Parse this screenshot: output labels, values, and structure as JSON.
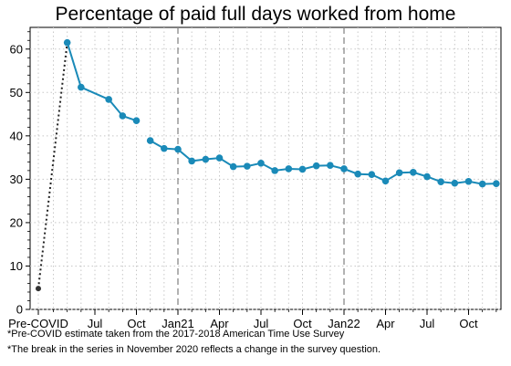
{
  "chart_data": {
    "type": "line",
    "title": "Percentage of paid full days worked from home",
    "xlabel": "",
    "ylabel": "",
    "ylim": [
      0,
      65
    ],
    "grid": true,
    "y_ticks": [
      0,
      10,
      20,
      30,
      40,
      50,
      60
    ],
    "x_tick_labels": [
      "Pre-COVID",
      "Jul",
      "Oct",
      "Jan21",
      "Apr",
      "Jul",
      "Oct",
      "Jan22",
      "Apr",
      "Jul",
      "Oct"
    ],
    "breaks": [
      "Jan21",
      "Jan22"
    ],
    "precovid": {
      "label": "Pre-COVID",
      "value": 4.8
    },
    "series": [
      {
        "color": "#1a8ab8",
        "segments": [
          {
            "x": [
              "2020-05",
              "2020-06",
              "2020-08",
              "2020-09",
              "2020-10"
            ],
            "y": [
              61.5,
              51.2,
              48.4,
              44.6,
              43.5
            ]
          },
          {
            "x": [
              "2020-11",
              "2020-12",
              "2021-01",
              "2021-02",
              "2021-03",
              "2021-04",
              "2021-05",
              "2021-06",
              "2021-07",
              "2021-08",
              "2021-09",
              "2021-10",
              "2021-11",
              "2021-12",
              "2022-01",
              "2022-02",
              "2022-03",
              "2022-04",
              "2022-05",
              "2022-06",
              "2022-07",
              "2022-08",
              "2022-09",
              "2022-10",
              "2022-11",
              "2022-12"
            ],
            "y": [
              38.9,
              37.1,
              36.9,
              34.2,
              34.6,
              34.9,
              32.9,
              33.0,
              33.7,
              32.0,
              32.4,
              32.3,
              33.1,
              33.2,
              32.4,
              31.2,
              31.1,
              29.6,
              31.5,
              31.6,
              30.6,
              29.4,
              29.1,
              29.5,
              28.9,
              29.0
            ]
          }
        ]
      }
    ]
  },
  "notes": [
    "*Pre-COVID estimate taken from the 2017-2018 American Time Use Survey",
    "*The break in the series in November 2020 reflects a change in the survey question."
  ]
}
